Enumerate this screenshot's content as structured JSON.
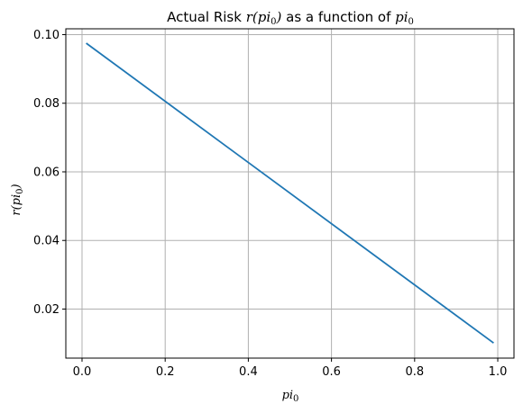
{
  "chart_data": {
    "type": "line",
    "title": {
      "prefix": "Actual Risk ",
      "math": "r(pi",
      "math_sub": "0",
      "math_suffix": ")",
      "middle": " as a function of ",
      "tail_math": "pi",
      "tail_sub": "0"
    },
    "xlabel": {
      "math": "pi",
      "sub": "0"
    },
    "ylabel": {
      "math": "r(pi",
      "sub": "0",
      "suffix": ")"
    },
    "xlim": [
      -0.039,
      1.039
    ],
    "ylim": [
      0.0057,
      0.1017
    ],
    "x_ticks": [
      0.0,
      0.2,
      0.4,
      0.6,
      0.8,
      1.0
    ],
    "x_tick_labels": [
      "0.0",
      "0.2",
      "0.4",
      "0.6",
      "0.8",
      "1.0"
    ],
    "y_ticks": [
      0.02,
      0.04,
      0.06,
      0.08,
      0.1
    ],
    "y_tick_labels": [
      "0.02",
      "0.04",
      "0.06",
      "0.08",
      "0.10"
    ],
    "grid": true,
    "series": [
      {
        "color": "#1f77b4",
        "x": [
          0.01,
          0.99
        ],
        "y": [
          0.0975,
          0.0101
        ]
      }
    ]
  }
}
